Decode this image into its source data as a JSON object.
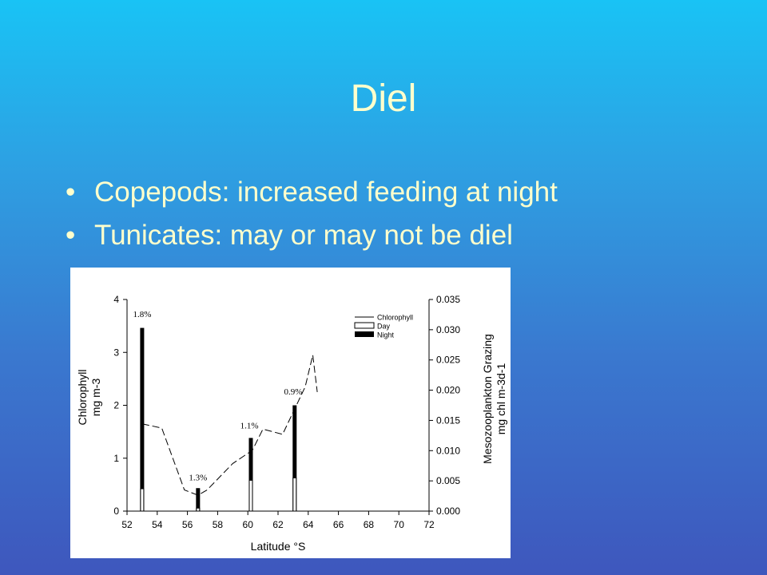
{
  "slide": {
    "title": "Diel",
    "bullets": [
      "Copepods: increased feeding at night",
      "Tunicates: may or may not be diel"
    ],
    "bullet_char": "•",
    "colors": {
      "text": "#ffffcc",
      "bg_top": "#19c3f5",
      "bg_bottom": "#3e57bd"
    }
  },
  "chart_data": {
    "type": "bar",
    "xlabel": "Latitude °S",
    "ylabel_left": [
      "Chlorophyll",
      "mg m-3"
    ],
    "ylabel_right": [
      "Mesozooplankton Grazing",
      "mg chl m-3d-1"
    ],
    "xlim": [
      52,
      72
    ],
    "xticks": [
      52,
      54,
      56,
      58,
      60,
      62,
      64,
      66,
      68,
      70,
      72
    ],
    "ylim_left": [
      0,
      4
    ],
    "yticks_left": [
      0,
      1,
      2,
      3,
      4
    ],
    "ylim_right": [
      0,
      0.035
    ],
    "yticks_right": [
      "0.000",
      "0.005",
      "0.010",
      "0.015",
      "0.020",
      "0.025",
      "0.030",
      "0.035"
    ],
    "legend": {
      "position": "top-right",
      "entries": [
        {
          "label": "Chlorophyll",
          "style": "line"
        },
        {
          "label": "Day",
          "style": "open-bar"
        },
        {
          "label": "Night",
          "style": "filled-bar"
        }
      ]
    },
    "series": [
      {
        "name": "Chlorophyll",
        "style": "dashed-line",
        "axis": "left",
        "points": [
          [
            53,
            1.65
          ],
          [
            54.3,
            1.57
          ],
          [
            55.8,
            0.4
          ],
          [
            56.7,
            0.3
          ],
          [
            57.3,
            0.4
          ],
          [
            59,
            0.9
          ],
          [
            60.3,
            1.15
          ],
          [
            61,
            1.55
          ],
          [
            62.3,
            1.45
          ],
          [
            63.8,
            2.35
          ],
          [
            64.3,
            2.95
          ],
          [
            64.6,
            2.25
          ]
        ]
      },
      {
        "name": "Day",
        "style": "open-bar",
        "axis": "right",
        "bars": [
          [
            53,
            0.0037
          ],
          [
            56.7,
            0.0005
          ],
          [
            60.2,
            0.0051
          ],
          [
            63.1,
            0.0055
          ]
        ]
      },
      {
        "name": "Night",
        "style": "filled-bar",
        "axis": "right",
        "bars": [
          [
            53,
            0.0303
          ],
          [
            56.7,
            0.0038
          ],
          [
            60.2,
            0.0121
          ],
          [
            63.1,
            0.0175
          ]
        ]
      }
    ],
    "annotations": [
      {
        "text": "1.8%",
        "x": 53,
        "y": 0.0321
      },
      {
        "text": "1.3%",
        "x": 56.7,
        "y": 0.0051
      },
      {
        "text": "1.1%",
        "x": 60.1,
        "y": 0.0137
      },
      {
        "text": "0.9%",
        "x": 63,
        "y": 0.0193
      }
    ]
  }
}
